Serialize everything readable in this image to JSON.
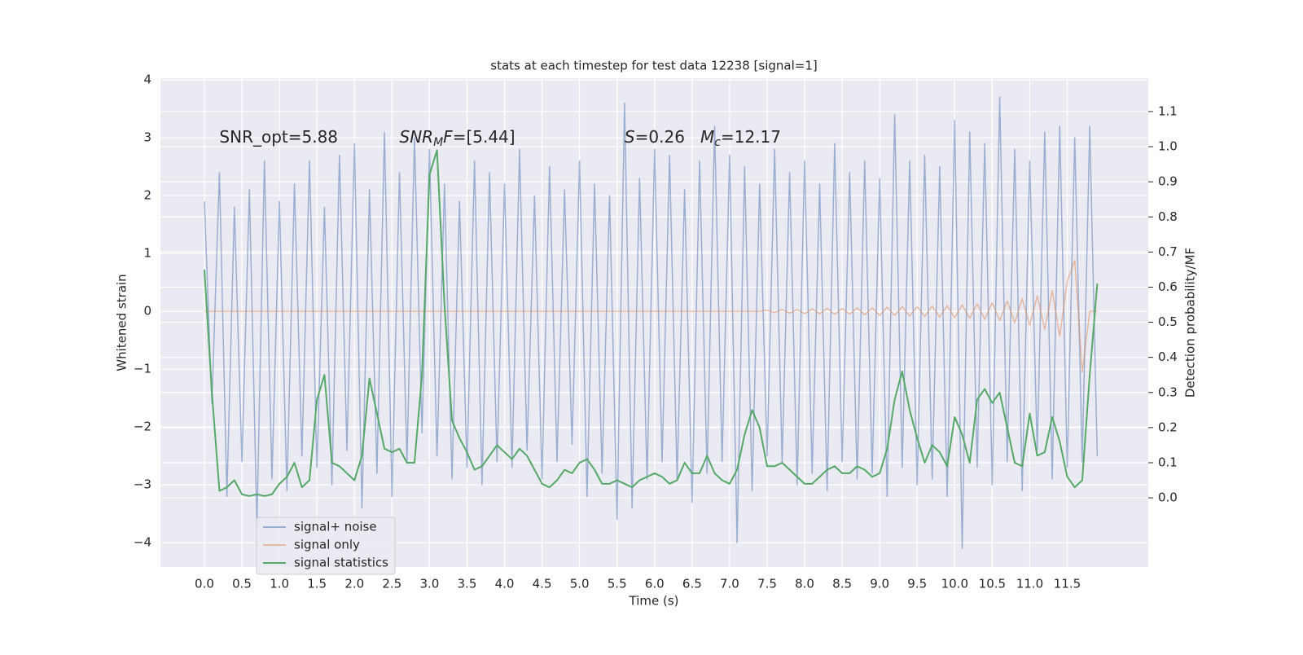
{
  "chart_data": {
    "type": "line",
    "title": "stats at each timestep for test data 12238 [signal=1]",
    "xlabel": "Time (s)",
    "ylabel": "Whitened strain",
    "y2label": "Detection probability/MF",
    "annotations": [
      [
        {
          "text": "SNR_opt=5.88",
          "x": 0.2,
          "y": 3
        }
      ],
      [
        {
          "text": "SNR",
          "x": 2.6,
          "y": 3,
          "italic": true
        },
        {
          "text": "M",
          "sub": true,
          "italic": true
        },
        {
          "text": "F",
          "italic": true
        },
        {
          "text": "=[5.44]"
        }
      ],
      [
        {
          "text": "S",
          "x": 5.6,
          "y": 3,
          "italic": true
        },
        {
          "text": "=0.26   "
        },
        {
          "text": "M",
          "italic": true
        },
        {
          "text": "c",
          "sub": true,
          "italic": true
        },
        {
          "text": "=12.17"
        }
      ]
    ],
    "x": [
      0.0,
      0.1,
      0.2,
      0.3,
      0.4,
      0.5,
      0.6,
      0.7,
      0.8,
      0.9,
      1.0,
      1.1,
      1.2,
      1.3,
      1.4,
      1.5,
      1.6,
      1.7,
      1.8,
      1.9,
      2.0,
      2.1,
      2.2,
      2.3,
      2.4,
      2.5,
      2.6,
      2.7,
      2.8,
      2.9,
      3.0,
      3.1,
      3.2,
      3.3,
      3.4,
      3.5,
      3.6,
      3.7,
      3.8,
      3.9,
      4.0,
      4.1,
      4.2,
      4.3,
      4.4,
      4.5,
      4.6,
      4.7,
      4.8,
      4.9,
      5.0,
      5.1,
      5.2,
      5.3,
      5.4,
      5.5,
      5.6,
      5.7,
      5.8,
      5.9,
      6.0,
      6.1,
      6.2,
      6.3,
      6.4,
      6.5,
      6.6,
      6.7,
      6.8,
      6.9,
      7.0,
      7.1,
      7.2,
      7.3,
      7.4,
      7.5,
      7.6,
      7.7,
      7.8,
      7.9,
      8.0,
      8.1,
      8.2,
      8.3,
      8.4,
      8.5,
      8.6,
      8.7,
      8.8,
      8.9,
      9.0,
      9.1,
      9.2,
      9.3,
      9.4,
      9.5,
      9.6,
      9.7,
      9.8,
      9.9,
      10.0,
      10.1,
      10.2,
      10.3,
      10.4,
      10.5,
      10.6,
      10.7,
      10.8,
      10.9,
      11.0,
      11.1,
      11.2,
      11.3,
      11.4,
      11.5,
      11.6,
      11.7,
      11.8,
      11.9
    ],
    "series": [
      {
        "name": "signal+ noise",
        "color": "#4c72b0",
        "opacity": 0.5,
        "axis": "y",
        "values": [
          1.9,
          -1.6,
          2.4,
          -3.2,
          1.8,
          -2.6,
          2.1,
          -3.7,
          2.6,
          -2.9,
          1.9,
          -3.1,
          2.2,
          -2.5,
          2.6,
          -2.7,
          1.8,
          -3.0,
          2.7,
          -2.4,
          2.9,
          -3.4,
          2.1,
          -2.8,
          3.1,
          -3.2,
          2.4,
          -2.6,
          3.0,
          -2.1,
          2.8,
          -2.5,
          2.2,
          -2.9,
          1.9,
          -2.7,
          2.6,
          -3.0,
          2.4,
          -2.6,
          2.2,
          -2.7,
          2.8,
          -2.4,
          2.0,
          -2.9,
          2.5,
          -2.6,
          2.1,
          -2.3,
          2.6,
          -3.2,
          2.2,
          -2.8,
          2.0,
          -3.6,
          3.6,
          -3.4,
          2.3,
          -2.9,
          2.8,
          -2.6,
          2.7,
          -2.9,
          2.1,
          -3.3,
          2.6,
          -2.8,
          3.2,
          -2.6,
          2.7,
          -4.0,
          2.5,
          -3.1,
          2.2,
          -2.5,
          2.8,
          -2.6,
          2.4,
          -3.0,
          2.6,
          -2.8,
          2.2,
          -3.1,
          2.9,
          -2.6,
          2.4,
          -2.9,
          2.6,
          -2.8,
          2.3,
          -3.2,
          3.4,
          -2.7,
          2.6,
          -3.0,
          2.7,
          -2.9,
          2.5,
          -3.2,
          3.3,
          -4.1,
          3.1,
          -2.7,
          2.9,
          -3.0,
          3.7,
          -2.6,
          2.8,
          -3.1,
          2.6,
          -2.4,
          3.1,
          -2.9,
          3.2,
          -2.7,
          3.0,
          -2.6,
          3.2,
          -2.5
        ]
      },
      {
        "name": "signal only",
        "color": "#dd8452",
        "opacity": 0.5,
        "axis": "y",
        "values": [
          0,
          0,
          0,
          0,
          0,
          0,
          0,
          0,
          0,
          0,
          0,
          0,
          0,
          0,
          0,
          0,
          0,
          0,
          0,
          0,
          0,
          0,
          0,
          0,
          0,
          0,
          0,
          0,
          0,
          0,
          0,
          0,
          0,
          0,
          0,
          0,
          0,
          0,
          0,
          0,
          0,
          0,
          0,
          0,
          0,
          0,
          0,
          0,
          0,
          0,
          0,
          0,
          0,
          0,
          0,
          0,
          0,
          0,
          0,
          0,
          0,
          0,
          0,
          0,
          0,
          0,
          0,
          0,
          0,
          0,
          0,
          0,
          0,
          0,
          0,
          0.02,
          -0.02,
          0.03,
          -0.03,
          0.03,
          -0.04,
          0.04,
          -0.04,
          0.05,
          -0.05,
          0.05,
          -0.05,
          0.06,
          -0.06,
          0.06,
          -0.07,
          0.07,
          -0.07,
          0.08,
          -0.08,
          0.08,
          -0.09,
          0.09,
          -0.1,
          0.1,
          -0.11,
          0.11,
          -0.12,
          0.13,
          -0.14,
          0.15,
          -0.16,
          0.18,
          -0.2,
          0.22,
          -0.24,
          0.27,
          -0.31,
          0.36,
          -0.43,
          0.52,
          0.88,
          -1.05,
          0,
          0
        ]
      },
      {
        "name": "signal statistics",
        "color": "#55a868",
        "opacity": 1,
        "axis": "y2",
        "values": [
          0.65,
          0.3,
          0.02,
          0.03,
          0.05,
          0.01,
          0.005,
          0.01,
          0.005,
          0.01,
          0.04,
          0.06,
          0.1,
          0.03,
          0.05,
          0.28,
          0.35,
          0.1,
          0.09,
          0.07,
          0.05,
          0.12,
          0.34,
          0.24,
          0.14,
          0.13,
          0.14,
          0.1,
          0.1,
          0.35,
          0.92,
          0.99,
          0.55,
          0.22,
          0.17,
          0.13,
          0.08,
          0.09,
          0.12,
          0.15,
          0.13,
          0.11,
          0.14,
          0.12,
          0.08,
          0.04,
          0.03,
          0.05,
          0.08,
          0.07,
          0.1,
          0.11,
          0.08,
          0.04,
          0.04,
          0.05,
          0.04,
          0.03,
          0.05,
          0.06,
          0.07,
          0.06,
          0.04,
          0.05,
          0.1,
          0.07,
          0.07,
          0.12,
          0.07,
          0.05,
          0.04,
          0.08,
          0.18,
          0.25,
          0.2,
          0.09,
          0.09,
          0.1,
          0.08,
          0.06,
          0.04,
          0.04,
          0.06,
          0.08,
          0.09,
          0.07,
          0.07,
          0.09,
          0.08,
          0.06,
          0.07,
          0.14,
          0.28,
          0.36,
          0.25,
          0.17,
          0.1,
          0.15,
          0.13,
          0.09,
          0.23,
          0.18,
          0.1,
          0.28,
          0.31,
          0.27,
          0.3,
          0.2,
          0.1,
          0.09,
          0.24,
          0.12,
          0.13,
          0.23,
          0.16,
          0.06,
          0.03,
          0.05,
          0.35,
          0.61
        ]
      }
    ],
    "xlim": [
      -0.586,
      12.58
    ],
    "xticks": [
      {
        "value": 0,
        "label": "0.0"
      },
      0.5,
      {
        "value": 1,
        "label": "1.0"
      },
      1.5,
      {
        "value": 2,
        "label": "2.0"
      },
      2.5,
      {
        "value": 3,
        "label": "3.0"
      },
      3.5,
      {
        "value": 4,
        "label": "4.0"
      },
      4.5,
      {
        "value": 5,
        "label": "5.0"
      },
      5.5,
      {
        "value": 6,
        "label": "6.0"
      },
      6.5,
      {
        "value": 7,
        "label": "7.0"
      },
      7.5,
      {
        "value": 8,
        "label": "8.0"
      },
      8.5,
      {
        "value": 9,
        "label": "9.0"
      },
      9.5,
      {
        "value": 10,
        "label": "10.0"
      },
      10.5,
      {
        "value": 11,
        "label": "11.0"
      },
      11.5
    ],
    "ylim": [
      -4.42,
      4.03
    ],
    "yticks": [
      {
        "value": -4,
        "label": "−4"
      },
      {
        "value": -3,
        "label": "−3"
      },
      {
        "value": -2,
        "label": "−2"
      },
      {
        "value": -1,
        "label": "−1"
      },
      0,
      1,
      2,
      3,
      4
    ],
    "y2lim": [
      -0.197,
      1.195
    ],
    "y2ticks": [
      {
        "value": 0,
        "label": "0.0"
      },
      0.1,
      0.2,
      0.3,
      0.4,
      0.5,
      0.6,
      0.7,
      0.8,
      0.9,
      {
        "value": 1,
        "label": "1.0"
      },
      1.1
    ],
    "grid": true,
    "legend": "lower left"
  }
}
